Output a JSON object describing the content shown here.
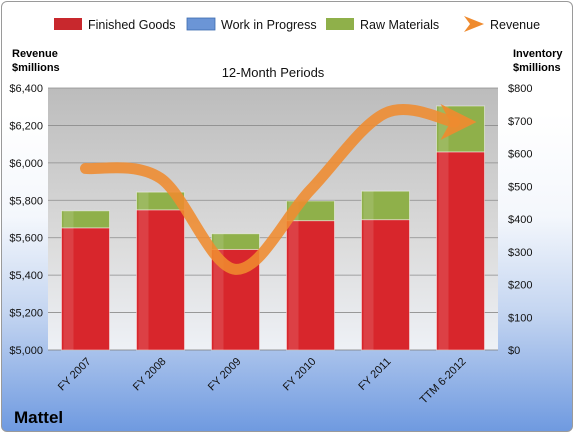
{
  "brand": "Mattel",
  "chart_data": {
    "type": "bar",
    "title": "12-Month Periods",
    "categories": [
      "FY 2007",
      "FY 2008",
      "FY 2009",
      "FY 2010",
      "FY 2011",
      "TTM 6-2012"
    ],
    "left_axis": {
      "label_line1": "Revenue",
      "label_line2": "$millions",
      "range": [
        5000,
        6400
      ],
      "ticks": [
        "$5,000",
        "$5,200",
        "$5,400",
        "$5,600",
        "$5,800",
        "$6,000",
        "$6,200",
        "$6,400"
      ]
    },
    "right_axis": {
      "label_line1": "Inventory",
      "label_line2": "$millions",
      "range": [
        0,
        800
      ],
      "ticks": [
        "$0",
        "$100",
        "$200",
        "$300",
        "$400",
        "$500",
        "$600",
        "$700",
        "$800"
      ]
    },
    "series": [
      {
        "name": "Finished Goods",
        "kind": "stacked-bar",
        "axis": "right",
        "color": "#d8262c",
        "values": [
          373,
          428,
          307,
          395,
          398,
          605
        ]
      },
      {
        "name": "Work in Progress",
        "kind": "stacked-bar",
        "axis": "right",
        "color": "#5a86cc",
        "values": [
          0,
          0,
          0,
          0,
          0,
          0
        ]
      },
      {
        "name": "Raw Materials",
        "kind": "stacked-bar",
        "axis": "right",
        "color": "#8fb04a",
        "values": [
          52,
          54,
          48,
          60,
          87,
          140
        ]
      },
      {
        "name": "Revenue",
        "kind": "line",
        "axis": "left",
        "color": "#ef8b2f",
        "values": [
          5970,
          5918,
          5431,
          5856,
          6266,
          6218
        ]
      }
    ],
    "grid": true,
    "legend_position": "top"
  }
}
